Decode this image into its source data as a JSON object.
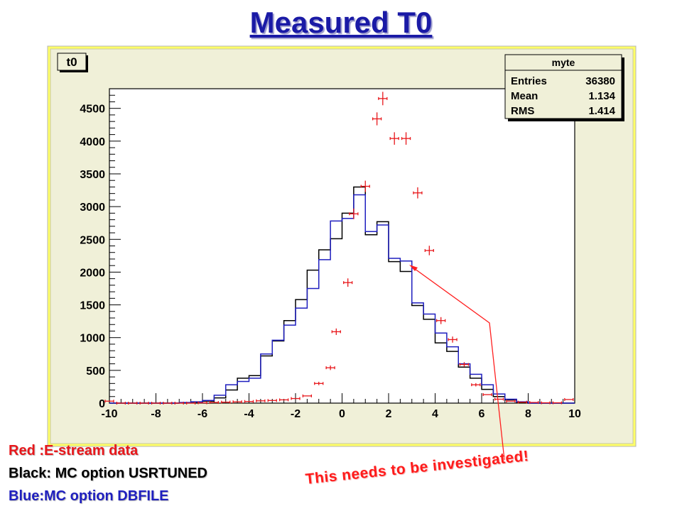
{
  "slide": {
    "title": "Measured T0",
    "legend_lines": [
      {
        "text": "Red :E-stream data",
        "color": "#e8171b"
      },
      {
        "text": "Black: MC option USRTUNED",
        "color": "#000000"
      },
      {
        "text": "Blue:MC option DBFILE",
        "color": "#1f1fbf"
      }
    ],
    "note": "This needs to be investigated!",
    "note_color": "#ff1a1a"
  },
  "colors": {
    "title": "#1a1aa6",
    "canvas_bg": "#f0f0d8",
    "canvas_frame": "#ffff66",
    "data": "#e8171b",
    "mc_usrtuned": "#000000",
    "mc_dbfile": "#1f1fbf",
    "arrow": "#ff2020"
  },
  "chart_data": {
    "type": "bar",
    "title": "t0",
    "xlim": [
      -10,
      10
    ],
    "ylim": [
      0,
      4800
    ],
    "xticks": [
      -10,
      -8,
      -6,
      -4,
      -2,
      0,
      2,
      4,
      6,
      8,
      10
    ],
    "yticks": [
      0,
      500,
      1000,
      1500,
      2000,
      2500,
      3000,
      3500,
      4000,
      4500
    ],
    "bin_edges": [
      -10,
      -9.5,
      -9,
      -8.5,
      -8,
      -7.5,
      -7,
      -6.5,
      -6,
      -5.5,
      -5,
      -4.5,
      -4,
      -3.5,
      -3,
      -2.5,
      -2,
      -1.5,
      -1,
      -0.5,
      0,
      0.5,
      1,
      1.5,
      2,
      2.5,
      3,
      3.5,
      4,
      4.5,
      5,
      5.5,
      6,
      6.5,
      7,
      7.5,
      8,
      8.5,
      9,
      9.5,
      10
    ],
    "stats_box": {
      "title": "myte",
      "rows": [
        {
          "label": "Entries",
          "value": "36380"
        },
        {
          "label": "Mean",
          "value": "1.134"
        },
        {
          "label": "RMS",
          "value": "1.414"
        }
      ]
    },
    "series": [
      {
        "name": "Red :E-stream data",
        "style": "points-with-errors",
        "x": [
          -10,
          -9.5,
          -9,
          -8.5,
          -8,
          -7.5,
          -7,
          -6.5,
          -6,
          -5.5,
          -5,
          -4.5,
          -4,
          -3.5,
          -3,
          -2.5,
          -2,
          -1.5,
          -1,
          -0.5,
          -0.25,
          0.25,
          0.5,
          1,
          1.5,
          1.75,
          2.25,
          2.75,
          3.25,
          3.75,
          4.25,
          4.75,
          5.25,
          5.75,
          6.25,
          6.75,
          7.25,
          7.75,
          8.25,
          8.75,
          9.25,
          9.75
        ],
        "y": [
          30,
          0,
          0,
          0,
          0,
          0,
          0,
          0,
          5,
          10,
          15,
          20,
          25,
          35,
          40,
          50,
          70,
          110,
          300,
          540,
          1090,
          1840,
          2890,
          3310,
          4340,
          4650,
          4040,
          4040,
          3210,
          2330,
          1260,
          970,
          590,
          280,
          130,
          60,
          30,
          15,
          10,
          5,
          5,
          55
        ]
      },
      {
        "name": "Black: MC option USRTUNED",
        "style": "step",
        "values": [
          0,
          0,
          0,
          0,
          0,
          0,
          5,
          15,
          30,
          80,
          200,
          380,
          420,
          720,
          950,
          1260,
          1580,
          2030,
          2340,
          2510,
          2900,
          3300,
          2570,
          2770,
          2160,
          2010,
          1490,
          1280,
          920,
          790,
          550,
          380,
          210,
          100,
          50,
          10,
          0,
          0,
          0,
          0
        ]
      },
      {
        "name": "Blue:MC option DBFILE",
        "style": "step",
        "values": [
          0,
          0,
          0,
          0,
          0,
          0,
          10,
          20,
          40,
          120,
          280,
          330,
          380,
          750,
          960,
          1190,
          1450,
          1750,
          2190,
          2780,
          2820,
          3180,
          2620,
          2720,
          2210,
          2170,
          1530,
          1360,
          1070,
          860,
          600,
          440,
          280,
          140,
          60,
          20,
          0,
          0,
          0,
          0
        ]
      }
    ]
  }
}
